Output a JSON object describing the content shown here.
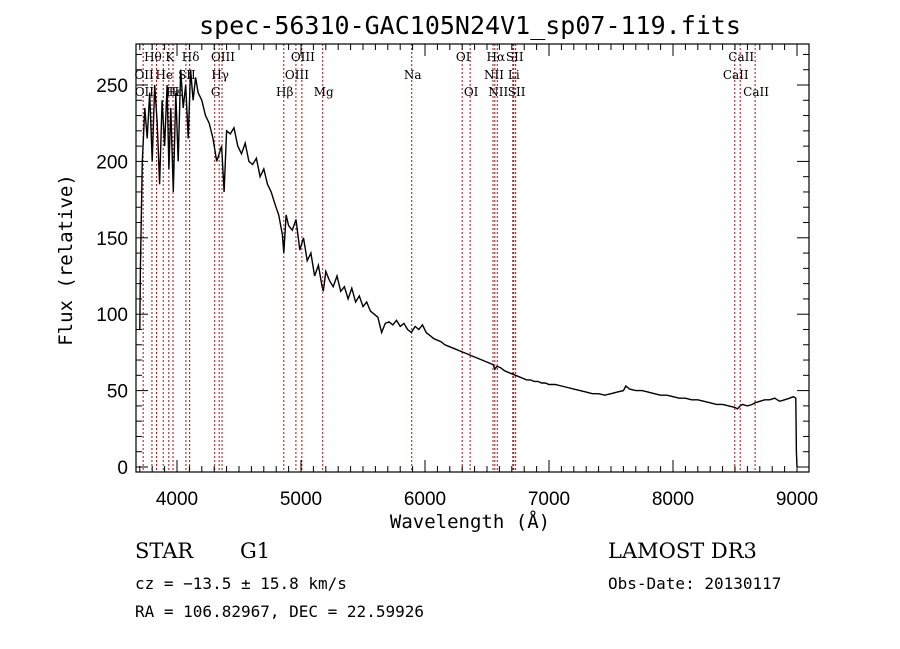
{
  "chart_data": {
    "type": "line",
    "title": "spec-56310-GAC105N24V1_sp07-119.fits",
    "xlabel": "Wavelength (Å)",
    "ylabel": "Flux (relative)",
    "xlim": [
      3700,
      9100
    ],
    "ylim": [
      -3,
      270
    ],
    "xticks": [
      4000,
      5000,
      6000,
      7000,
      8000,
      9000
    ],
    "xtick_labels": [
      "4000",
      "5000",
      "6000",
      "7000",
      "8000",
      "9000"
    ],
    "yticks": [
      0,
      50,
      100,
      150,
      200,
      250
    ],
    "ytick_labels": [
      "0",
      "50",
      "100",
      "150",
      "200",
      "250"
    ],
    "grid": false,
    "line_color": "#000000",
    "marker_line_color": "#a01010",
    "series": [
      {
        "name": "flux",
        "x": [
          3700,
          3705,
          3720,
          3740,
          3760,
          3780,
          3800,
          3820,
          3840,
          3860,
          3880,
          3900,
          3920,
          3935,
          3950,
          3970,
          3990,
          4010,
          4030,
          4050,
          4070,
          4090,
          4110,
          4130,
          4150,
          4170,
          4200,
          4230,
          4260,
          4290,
          4320,
          4340,
          4360,
          4380,
          4400,
          4430,
          4460,
          4490,
          4520,
          4550,
          4580,
          4610,
          4640,
          4670,
          4700,
          4730,
          4760,
          4790,
          4820,
          4850,
          4861,
          4880,
          4900,
          4930,
          4960,
          4990,
          5020,
          5050,
          5080,
          5110,
          5140,
          5170,
          5180,
          5200,
          5230,
          5260,
          5290,
          5320,
          5350,
          5380,
          5410,
          5440,
          5470,
          5500,
          5530,
          5560,
          5590,
          5620,
          5650,
          5680,
          5710,
          5740,
          5770,
          5800,
          5830,
          5860,
          5890,
          5920,
          5950,
          5980,
          6010,
          6040,
          6070,
          6100,
          6130,
          6160,
          6190,
          6220,
          6250,
          6280,
          6310,
          6340,
          6370,
          6400,
          6430,
          6460,
          6490,
          6520,
          6550,
          6563,
          6580,
          6610,
          6640,
          6670,
          6700,
          6730,
          6760,
          6790,
          6820,
          6850,
          6880,
          6910,
          6940,
          6970,
          7000,
          7050,
          7100,
          7150,
          7200,
          7250,
          7300,
          7350,
          7400,
          7450,
          7500,
          7550,
          7600,
          7620,
          7650,
          7700,
          7750,
          7800,
          7850,
          7900,
          7950,
          8000,
          8050,
          8100,
          8150,
          8200,
          8250,
          8300,
          8350,
          8400,
          8450,
          8498,
          8520,
          8542,
          8560,
          8600,
          8640,
          8662,
          8700,
          8740,
          8780,
          8820,
          8860,
          8900,
          8940,
          8970,
          8990,
          8995,
          9000
        ],
        "y": [
          90,
          130,
          200,
          235,
          215,
          245,
          200,
          250,
          225,
          185,
          240,
          210,
          250,
          195,
          235,
          180,
          245,
          200,
          260,
          235,
          250,
          215,
          260,
          240,
          255,
          245,
          240,
          230,
          225,
          215,
          200,
          205,
          210,
          180,
          220,
          218,
          222,
          210,
          205,
          212,
          200,
          198,
          202,
          190,
          195,
          185,
          180,
          172,
          165,
          152,
          140,
          165,
          158,
          155,
          162,
          142,
          150,
          135,
          140,
          125,
          132,
          118,
          115,
          128,
          122,
          118,
          125,
          115,
          118,
          110,
          117,
          108,
          112,
          105,
          108,
          102,
          100,
          98,
          88,
          94,
          95,
          93,
          96,
          92,
          94,
          90,
          88,
          92,
          90,
          93,
          88,
          86,
          84,
          83,
          82,
          80,
          79,
          78,
          77,
          76,
          75,
          74,
          73,
          72,
          71,
          70,
          69,
          68,
          67,
          64,
          66,
          65,
          63,
          62,
          61,
          60,
          59,
          58,
          57,
          57,
          56,
          56,
          55,
          55,
          54,
          54,
          53,
          52,
          51,
          50,
          49,
          48,
          48,
          47,
          48,
          49,
          50,
          53,
          51,
          50,
          50,
          49,
          48,
          47,
          47,
          46,
          45,
          45,
          44,
          44,
          43,
          42,
          41,
          41,
          40,
          39,
          38,
          40,
          41,
          40,
          41,
          42,
          43,
          44,
          44,
          45,
          43,
          44,
          45,
          46,
          45,
          10,
          0
        ]
      }
    ],
    "annotations": [
      {
        "label": "Hθ",
        "wavelength": 3798,
        "row": 0
      },
      {
        "label": "K",
        "wavelength": 3934,
        "row": 0
      },
      {
        "label": "Hδ",
        "wavelength": 4102,
        "row": 0
      },
      {
        "label": "OIII",
        "wavelength": 4363,
        "row": 0
      },
      {
        "label": "OIII",
        "wavelength": 5007,
        "row": 0
      },
      {
        "label": "OI",
        "wavelength": 6300,
        "row": 0
      },
      {
        "label": "Hα",
        "wavelength": 6563,
        "row": 0
      },
      {
        "label": "SII",
        "wavelength": 6716,
        "row": 0
      },
      {
        "label": "CaII",
        "wavelength": 8542,
        "row": 0
      },
      {
        "label": "OII",
        "wavelength": 3727,
        "row": 1
      },
      {
        "label": "He",
        "wavelength": 3889,
        "row": 1
      },
      {
        "label": "SII",
        "wavelength": 4072,
        "row": 1
      },
      {
        "label": "Hγ",
        "wavelength": 4340,
        "row": 1
      },
      {
        "label": "OIII",
        "wavelength": 4959,
        "row": 1
      },
      {
        "label": "Na",
        "wavelength": 5893,
        "row": 1
      },
      {
        "label": "NII",
        "wavelength": 6548,
        "row": 1
      },
      {
        "label": "Li",
        "wavelength": 6708,
        "row": 1
      },
      {
        "label": "CaII",
        "wavelength": 8498,
        "row": 1
      },
      {
        "label": "OII",
        "wavelength": 3729,
        "row": 2
      },
      {
        "label": "Hε",
        "wavelength": 3970,
        "row": 2
      },
      {
        "label": "H",
        "wavelength": 3968,
        "row": 2
      },
      {
        "label": "G",
        "wavelength": 4304,
        "row": 2
      },
      {
        "label": "Hβ",
        "wavelength": 4861,
        "row": 2
      },
      {
        "label": "Mg",
        "wavelength": 5175,
        "row": 2
      },
      {
        "label": "OI",
        "wavelength": 6364,
        "row": 2
      },
      {
        "label": "NII",
        "wavelength": 6583,
        "row": 2
      },
      {
        "label": "SII",
        "wavelength": 6731,
        "row": 2
      },
      {
        "label": "CaII",
        "wavelength": 8662,
        "row": 2
      }
    ],
    "marker_wavelengths": [
      3727,
      3798,
      3835,
      3889,
      3934,
      3968,
      4072,
      4102,
      4304,
      4340,
      4363,
      4861,
      4959,
      5007,
      5175,
      5893,
      6300,
      6364,
      6548,
      6563,
      6583,
      6708,
      6716,
      6731,
      8498,
      8542,
      8662
    ]
  },
  "info": {
    "object_class": "STAR",
    "subclass": "G1",
    "redshift_line": "cz = −13.5 ± 15.8 km/s",
    "coords_line": "RA = 106.82967, DEC =  22.59926",
    "survey": "LAMOST DR3",
    "obs_date": "Obs-Date: 20130117"
  }
}
